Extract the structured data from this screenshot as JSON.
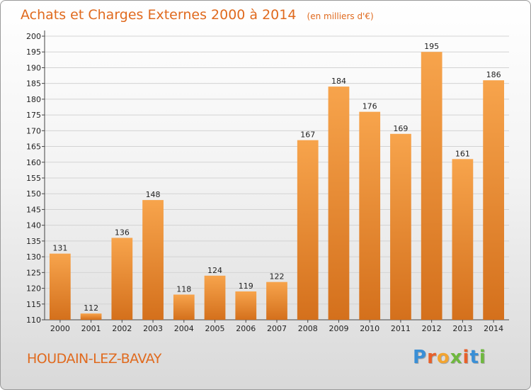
{
  "header": {
    "title": "Achats et Charges Externes 2000 à 2014",
    "unit": "(en milliers d'€)"
  },
  "footer": {
    "city": "HOUDAIN-LEZ-BAVAY",
    "logo_text": "Proxiti",
    "logo_letters": [
      {
        "ch": "P",
        "color": "#3a8fd6"
      },
      {
        "ch": "r",
        "color": "#e8602a"
      },
      {
        "ch": "o",
        "color": "#f2a431"
      },
      {
        "ch": "x",
        "color": "#6fb83f"
      },
      {
        "ch": "i",
        "color": "#e8602a"
      },
      {
        "ch": "t",
        "color": "#3a8fd6"
      },
      {
        "ch": "i",
        "color": "#6fb83f"
      }
    ]
  },
  "colors": {
    "bar_top": "#f7a44c",
    "bar_bottom": "#d4701c",
    "title": "#e06a1e"
  },
  "chart_data": {
    "type": "bar",
    "title": "Achats et Charges Externes 2000 à 2014",
    "subtitle": "(en milliers d'€)",
    "categories": [
      "2000",
      "2001",
      "2002",
      "2003",
      "2004",
      "2005",
      "2006",
      "2007",
      "2008",
      "2009",
      "2010",
      "2011",
      "2012",
      "2013",
      "2014"
    ],
    "values": [
      131,
      112,
      136,
      148,
      118,
      124,
      119,
      122,
      167,
      184,
      176,
      169,
      195,
      161,
      186
    ],
    "ylim": [
      110,
      200
    ],
    "yticks": [
      110,
      115,
      120,
      125,
      130,
      135,
      140,
      145,
      150,
      155,
      160,
      165,
      170,
      175,
      180,
      185,
      190,
      195,
      200
    ],
    "grid": true,
    "legend": "none"
  }
}
